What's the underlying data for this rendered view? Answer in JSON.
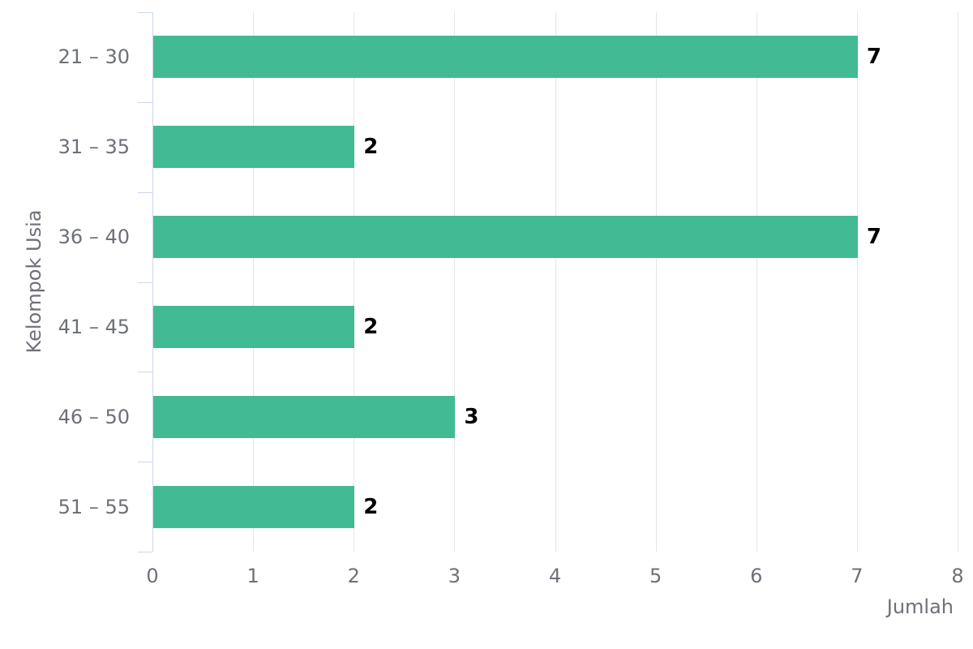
{
  "chart_data": {
    "type": "bar",
    "orientation": "horizontal",
    "title": "",
    "categories": [
      "21 – 30",
      "31 – 35",
      "36 – 40",
      "41 – 45",
      "46 – 50",
      "51 – 55"
    ],
    "values": [
      7,
      2,
      7,
      2,
      3,
      2
    ],
    "value_labels": [
      "7",
      "2",
      "7",
      "2",
      "3",
      "2"
    ],
    "xlabel": "Jumlah",
    "ylabel": "Kelompok Usia",
    "xlim": [
      0,
      8
    ],
    "x_ticks": [
      "0",
      "1",
      "2",
      "3",
      "4",
      "5",
      "6",
      "7",
      "8"
    ],
    "grid": "vertical-gridlines-on",
    "legend": "none",
    "colors": {
      "bar": "#42ba93",
      "axis_line": "#ccd6eb",
      "gridline": "#e6e6e6",
      "label_text": "#6e7079",
      "value_label_text": "#000000",
      "background": "#ffffff"
    }
  }
}
